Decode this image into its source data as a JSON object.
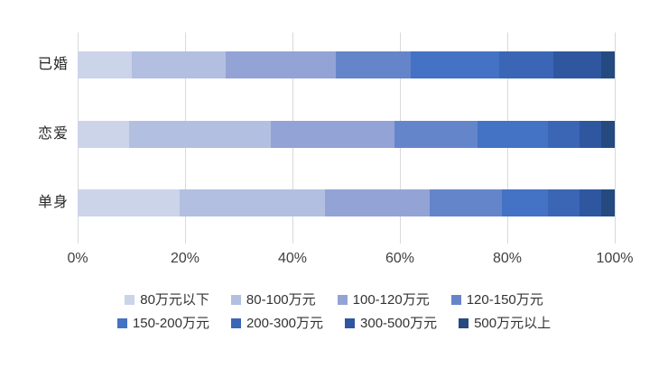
{
  "chart_data": {
    "type": "bar",
    "variant": "horizontal-stacked-100",
    "title": "",
    "categories": [
      "已婚",
      "恋爱",
      "单身"
    ],
    "series": [
      {
        "name": "80万元以下",
        "color": "#ccd4ea",
        "values": [
          10.0,
          9.5,
          19.0
        ]
      },
      {
        "name": "80-100万元",
        "color": "#b2bfe1",
        "values": [
          17.5,
          26.5,
          27.0
        ]
      },
      {
        "name": "100-120万元",
        "color": "#93a3d5",
        "values": [
          20.5,
          23.0,
          19.5
        ]
      },
      {
        "name": "120-150万元",
        "color": "#6585cb",
        "values": [
          14.0,
          15.5,
          13.5
        ]
      },
      {
        "name": "150-200万元",
        "color": "#4472c4",
        "values": [
          16.5,
          13.0,
          8.5
        ]
      },
      {
        "name": "200-300万元",
        "color": "#3a66b5",
        "values": [
          10.0,
          6.0,
          6.0
        ]
      },
      {
        "name": "300-500万元",
        "color": "#2e579f",
        "values": [
          9.0,
          4.0,
          4.0
        ]
      },
      {
        "name": "500万元以上",
        "color": "#254a80",
        "values": [
          2.5,
          2.5,
          2.5
        ]
      }
    ],
    "x_ticks": [
      "0%",
      "20%",
      "40%",
      "60%",
      "80%",
      "100%"
    ],
    "xlim": [
      0,
      100
    ],
    "xlabel": "",
    "ylabel": "",
    "grid": true,
    "legend_position": "bottom"
  },
  "legend": {
    "items_per_row": 4
  },
  "colors": {
    "background": "#ffffff",
    "gridline": "#d9d9d9",
    "axis_text": "#404040",
    "category_text": "#262626",
    "legend_text": "#333333"
  }
}
